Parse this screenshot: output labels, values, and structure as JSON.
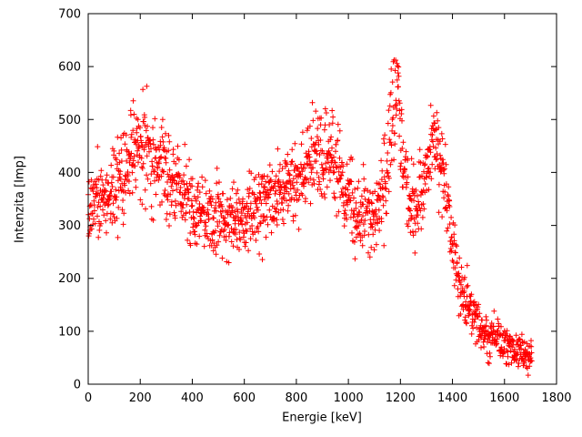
{
  "chart_data": {
    "type": "scatter",
    "title": "",
    "xlabel": "Energie [keV]",
    "ylabel": "Intenzita [Imp]",
    "xlim": [
      0,
      1800
    ],
    "ylim": [
      0,
      700
    ],
    "xticks": [
      0,
      200,
      400,
      600,
      800,
      1000,
      1200,
      1400,
      1600,
      1800
    ],
    "yticks": [
      0,
      100,
      200,
      300,
      400,
      500,
      600,
      700
    ],
    "grid": false,
    "legend": null,
    "marker": "plus",
    "marker_color": "#ff0000",
    "axis_color": "#000000",
    "background": "#ffffff",
    "n_points": 1705,
    "x_data_range": [
      0,
      1705
    ],
    "noise_model": "sigma = noise_k * sqrt(mean), Poisson-like counting noise",
    "noise_k": 2.0,
    "mean_curve": [
      [
        0,
        345
      ],
      [
        40,
        352
      ],
      [
        80,
        360
      ],
      [
        120,
        385
      ],
      [
        160,
        430
      ],
      [
        185,
        458
      ],
      [
        200,
        465
      ],
      [
        215,
        455
      ],
      [
        240,
        430
      ],
      [
        280,
        408
      ],
      [
        320,
        385
      ],
      [
        360,
        355
      ],
      [
        400,
        332
      ],
      [
        440,
        318
      ],
      [
        480,
        310
      ],
      [
        520,
        308
      ],
      [
        560,
        312
      ],
      [
        600,
        322
      ],
      [
        650,
        333
      ],
      [
        700,
        347
      ],
      [
        750,
        368
      ],
      [
        800,
        395
      ],
      [
        840,
        418
      ],
      [
        880,
        432
      ],
      [
        915,
        440
      ],
      [
        940,
        428
      ],
      [
        960,
        405
      ],
      [
        980,
        368
      ],
      [
        1000,
        340
      ],
      [
        1030,
        322
      ],
      [
        1060,
        315
      ],
      [
        1090,
        315
      ],
      [
        1115,
        325
      ],
      [
        1135,
        355
      ],
      [
        1155,
        430
      ],
      [
        1168,
        520
      ],
      [
        1178,
        555
      ],
      [
        1188,
        545
      ],
      [
        1200,
        480
      ],
      [
        1215,
        405
      ],
      [
        1235,
        350
      ],
      [
        1255,
        333
      ],
      [
        1275,
        350
      ],
      [
        1295,
        390
      ],
      [
        1315,
        432
      ],
      [
        1330,
        452
      ],
      [
        1345,
        442
      ],
      [
        1360,
        412
      ],
      [
        1375,
        365
      ],
      [
        1390,
        300
      ],
      [
        1405,
        250
      ],
      [
        1420,
        215
      ],
      [
        1440,
        180
      ],
      [
        1460,
        152
      ],
      [
        1480,
        132
      ],
      [
        1500,
        115
      ],
      [
        1530,
        98
      ],
      [
        1560,
        86
      ],
      [
        1600,
        74
      ],
      [
        1650,
        62
      ],
      [
        1705,
        52
      ]
    ],
    "annotations": [
      "backscatter bump near 200 keV (~465 Imp mean, outliers to ~600)",
      "broad Compton-edge bump near 900 keV (~440 Imp mean)",
      "photopeak near 1175 keV (mean ~555 Imp, max ~675)",
      "photopeak near 1330 keV (mean ~450 Imp, max ~490)",
      "steep falloff after 1380 keV down to ~50 Imp at 1700 keV"
    ]
  }
}
